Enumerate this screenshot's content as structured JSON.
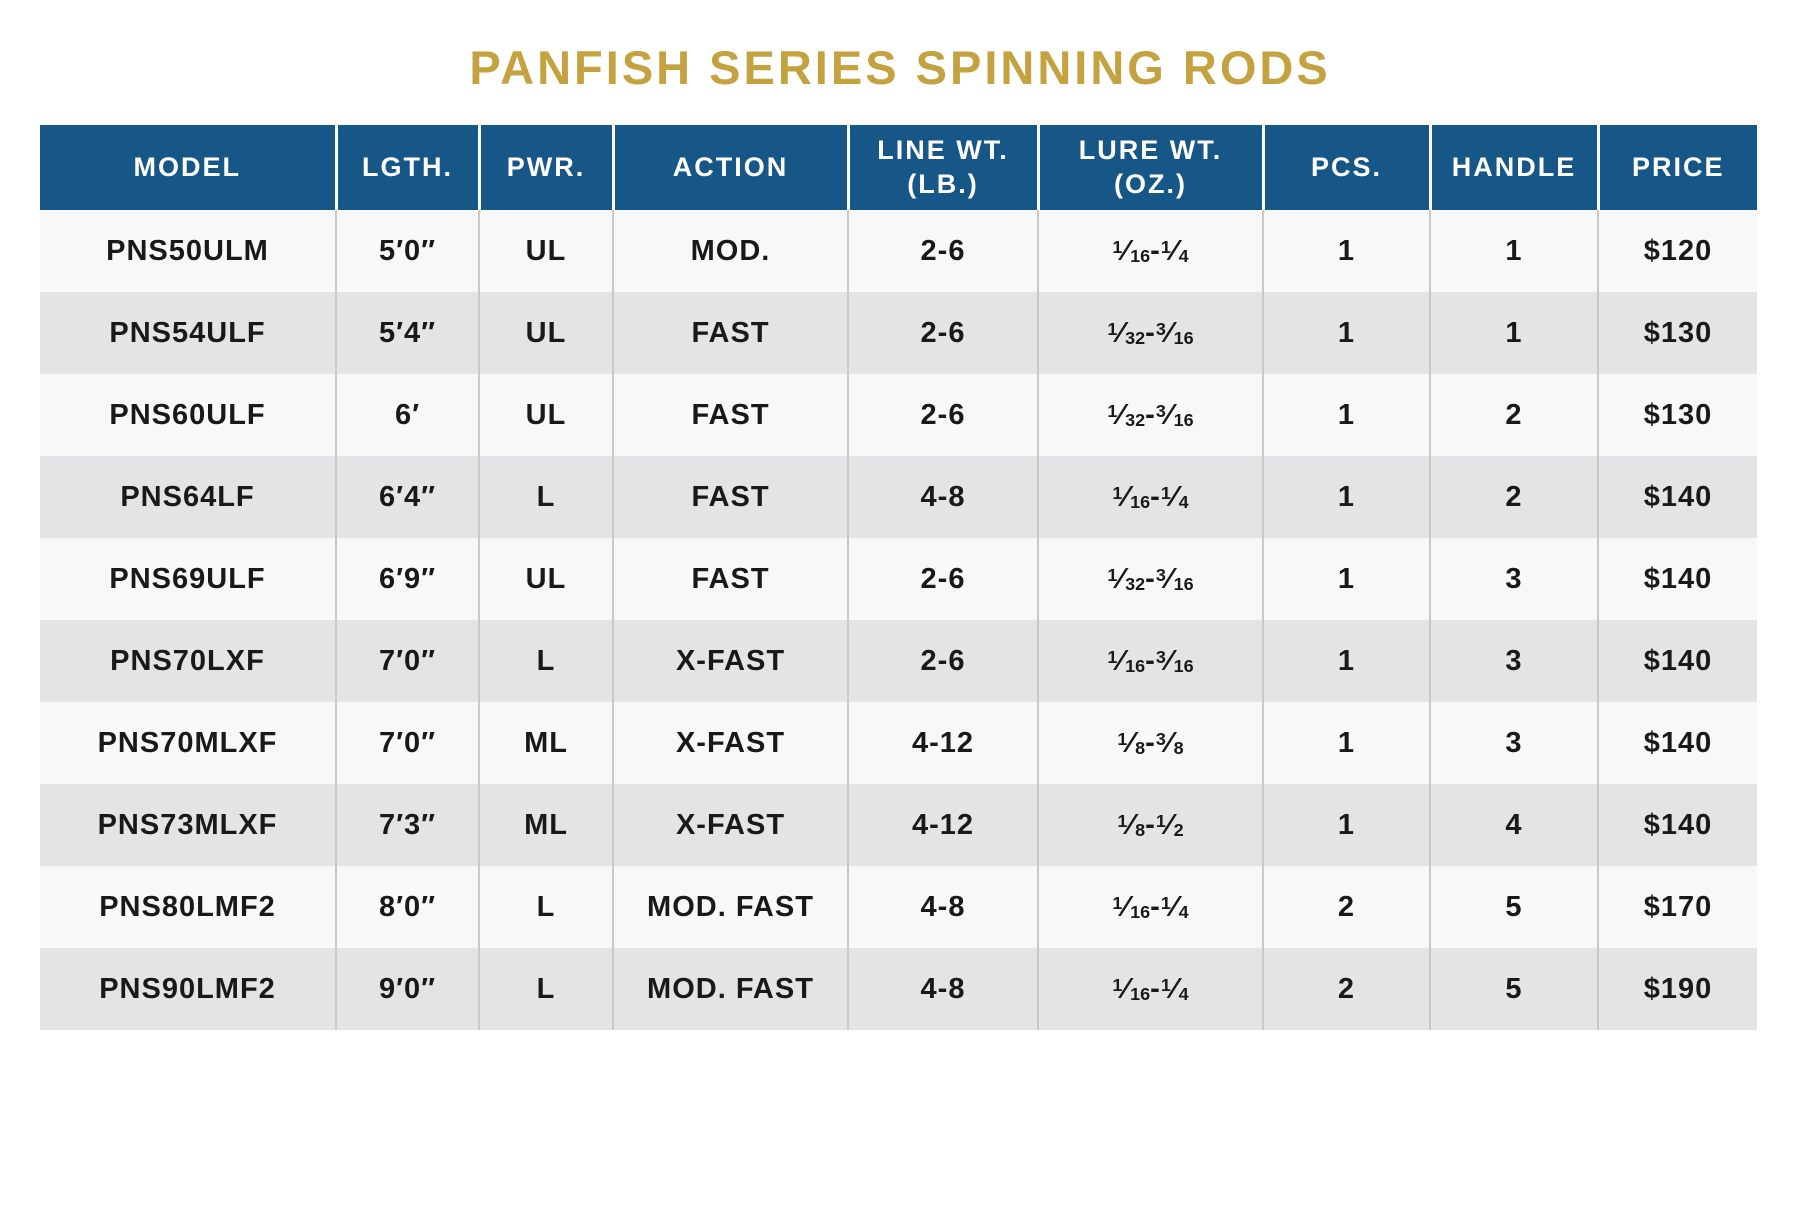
{
  "title": "PANFISH SERIES SPINNING RODS",
  "colors": {
    "title_gold": "#C4A23F",
    "header_blue": "#175787",
    "row_light": "#F8F8F8",
    "row_dark": "#E4E4E6",
    "divider": "#C9C9C9",
    "header_text": "#FFFFFF",
    "body_text": "#191919",
    "page_bg": "#FFFFFF"
  },
  "table": {
    "columns": [
      {
        "key": "model",
        "label": "MODEL"
      },
      {
        "key": "lgth",
        "label": "LGTH."
      },
      {
        "key": "pwr",
        "label": "PWR."
      },
      {
        "key": "action",
        "label": "ACTION"
      },
      {
        "key": "line_wt",
        "label": "LINE WT.\n(LB.)"
      },
      {
        "key": "lure_wt",
        "label": "LURE WT.\n(OZ.)"
      },
      {
        "key": "pcs",
        "label": "PCS."
      },
      {
        "key": "handle",
        "label": "HANDLE"
      },
      {
        "key": "price",
        "label": "PRICE"
      }
    ],
    "rows": [
      {
        "model": "PNS50ULM",
        "lgth": "5′0″",
        "pwr": "UL",
        "action": "MOD.",
        "line_wt": "2-6",
        "lure_wt": "1/16-1/4",
        "pcs": "1",
        "handle": "1",
        "price": "$120"
      },
      {
        "model": "PNS54ULF",
        "lgth": "5′4″",
        "pwr": "UL",
        "action": "FAST",
        "line_wt": "2-6",
        "lure_wt": "1/32-3/16",
        "pcs": "1",
        "handle": "1",
        "price": "$130"
      },
      {
        "model": "PNS60ULF",
        "lgth": "6′",
        "pwr": "UL",
        "action": "FAST",
        "line_wt": "2-6",
        "lure_wt": "1/32-3/16",
        "pcs": "1",
        "handle": "2",
        "price": "$130"
      },
      {
        "model": "PNS64LF",
        "lgth": "6′4″",
        "pwr": "L",
        "action": "FAST",
        "line_wt": "4-8",
        "lure_wt": "1/16-1/4",
        "pcs": "1",
        "handle": "2",
        "price": "$140"
      },
      {
        "model": "PNS69ULF",
        "lgth": "6′9″",
        "pwr": "UL",
        "action": "FAST",
        "line_wt": "2-6",
        "lure_wt": "1/32-3/16",
        "pcs": "1",
        "handle": "3",
        "price": "$140"
      },
      {
        "model": "PNS70LXF",
        "lgth": "7′0″",
        "pwr": "L",
        "action": "X-FAST",
        "line_wt": "2-6",
        "lure_wt": "1/16-3/16",
        "pcs": "1",
        "handle": "3",
        "price": "$140"
      },
      {
        "model": "PNS70MLXF",
        "lgth": "7′0″",
        "pwr": "ML",
        "action": "X-FAST",
        "line_wt": "4-12",
        "lure_wt": "1/8-3/8",
        "pcs": "1",
        "handle": "3",
        "price": "$140"
      },
      {
        "model": "PNS73MLXF",
        "lgth": "7′3″",
        "pwr": "ML",
        "action": "X-FAST",
        "line_wt": "4-12",
        "lure_wt": "1/8-1/2",
        "pcs": "1",
        "handle": "4",
        "price": "$140"
      },
      {
        "model": "PNS80LMF2",
        "lgth": "8′0″",
        "pwr": "L",
        "action": "MOD. FAST",
        "line_wt": "4-8",
        "lure_wt": "1/16-1/4",
        "pcs": "2",
        "handle": "5",
        "price": "$170"
      },
      {
        "model": "PNS90LMF2",
        "lgth": "9′0″",
        "pwr": "L",
        "action": "MOD. FAST",
        "line_wt": "4-8",
        "lure_wt": "1/16-1/4",
        "pcs": "2",
        "handle": "5",
        "price": "$190"
      }
    ]
  }
}
